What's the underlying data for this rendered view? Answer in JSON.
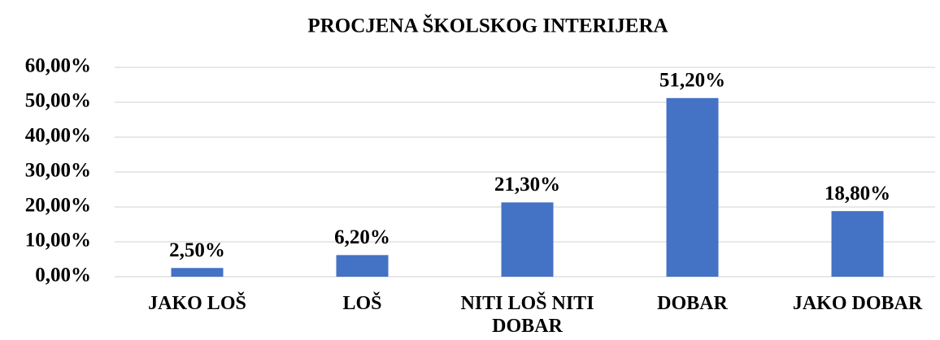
{
  "chart_data": {
    "type": "bar",
    "title": "PROCJENA ŠKOLSKOG INTERIJERA",
    "categories": [
      "JAKO LOŠ",
      "LOŠ",
      "NITI LOŠ NITI DOBAR",
      "DOBAR",
      "JAKO DOBAR"
    ],
    "values": [
      2.5,
      6.2,
      21.3,
      51.2,
      18.8
    ],
    "value_labels": [
      "2,50%",
      "6,20%",
      "21,30%",
      "51,20%",
      "18,80%"
    ],
    "color": "#4472c4",
    "ylim": [
      0,
      60
    ],
    "yticks": [
      {
        "value": 0,
        "label": "0,00%"
      },
      {
        "value": 10,
        "label": "10,00%"
      },
      {
        "value": 20,
        "label": "20,00%"
      },
      {
        "value": 30,
        "label": "30,00%"
      },
      {
        "value": 40,
        "label": "40,00%"
      },
      {
        "value": 50,
        "label": "50,00%"
      },
      {
        "value": 60,
        "label": "60,00%"
      }
    ],
    "grid": true
  }
}
